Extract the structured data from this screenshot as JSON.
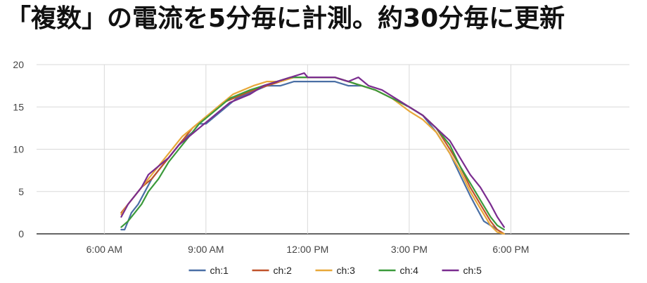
{
  "headline": "「複数」の電流を5分毎に計測。約30分毎に更新",
  "chart_data": {
    "type": "line",
    "title": "",
    "xlabel": "",
    "ylabel": "",
    "ylim": [
      0,
      20
    ],
    "yticks": [
      0,
      5,
      10,
      15,
      20
    ],
    "xlim_hours": [
      4.0,
      21.5
    ],
    "xticks": [
      {
        "hour": 6,
        "label": "6:00 AM"
      },
      {
        "hour": 9,
        "label": "9:00 AM"
      },
      {
        "hour": 12,
        "label": "12:00 PM"
      },
      {
        "hour": 15,
        "label": "3:00 PM"
      },
      {
        "hour": 18,
        "label": "6:00 PM"
      }
    ],
    "grid": true,
    "legend_position": "bottom",
    "series": [
      {
        "name": "ch:1",
        "color": "#4a6fa5",
        "points": [
          [
            6.5,
            0.5
          ],
          [
            6.6,
            0.5
          ],
          [
            6.7,
            1.5
          ],
          [
            6.8,
            2.5
          ],
          [
            7.0,
            3.5
          ],
          [
            7.2,
            5.0
          ],
          [
            7.4,
            6.5
          ],
          [
            7.6,
            7.5
          ],
          [
            7.8,
            8.5
          ],
          [
            8.0,
            9.5
          ],
          [
            8.3,
            11.0
          ],
          [
            8.6,
            12.0
          ],
          [
            8.8,
            13.0
          ],
          [
            9.0,
            13.0
          ],
          [
            9.3,
            14.0
          ],
          [
            9.6,
            15.0
          ],
          [
            9.9,
            16.0
          ],
          [
            10.2,
            16.5
          ],
          [
            10.5,
            17.0
          ],
          [
            10.8,
            17.5
          ],
          [
            11.2,
            17.5
          ],
          [
            11.6,
            18.0
          ],
          [
            12.0,
            18.0
          ],
          [
            12.4,
            18.0
          ],
          [
            12.8,
            18.0
          ],
          [
            13.2,
            17.5
          ],
          [
            13.6,
            17.5
          ],
          [
            14.0,
            17.0
          ],
          [
            14.5,
            16.0
          ],
          [
            15.0,
            15.0
          ],
          [
            15.4,
            14.0
          ],
          [
            15.8,
            12.0
          ],
          [
            16.2,
            9.5
          ],
          [
            16.5,
            7.0
          ],
          [
            16.8,
            4.5
          ],
          [
            17.0,
            3.0
          ],
          [
            17.2,
            1.5
          ],
          [
            17.4,
            1.0
          ],
          [
            17.6,
            0.5
          ],
          [
            17.8,
            0.0
          ]
        ]
      },
      {
        "name": "ch:2",
        "color": "#c0532b",
        "points": [
          [
            6.5,
            2.5
          ],
          [
            6.7,
            3.5
          ],
          [
            6.9,
            4.5
          ],
          [
            7.1,
            5.5
          ],
          [
            7.4,
            6.5
          ],
          [
            7.7,
            8.0
          ],
          [
            8.0,
            9.5
          ],
          [
            8.3,
            11.0
          ],
          [
            8.6,
            12.5
          ],
          [
            8.9,
            13.5
          ],
          [
            9.2,
            14.5
          ],
          [
            9.5,
            15.5
          ],
          [
            9.8,
            16.0
          ],
          [
            10.1,
            16.5
          ],
          [
            10.4,
            17.0
          ],
          [
            10.8,
            17.5
          ],
          [
            11.2,
            18.0
          ],
          [
            11.6,
            18.5
          ],
          [
            12.0,
            18.5
          ],
          [
            12.4,
            18.5
          ],
          [
            12.8,
            18.5
          ],
          [
            13.2,
            18.0
          ],
          [
            13.6,
            17.5
          ],
          [
            14.0,
            17.0
          ],
          [
            14.5,
            16.0
          ],
          [
            15.0,
            15.0
          ],
          [
            15.4,
            14.0
          ],
          [
            15.8,
            12.5
          ],
          [
            16.2,
            10.0
          ],
          [
            16.5,
            8.0
          ],
          [
            16.8,
            5.5
          ],
          [
            17.1,
            3.5
          ],
          [
            17.4,
            1.5
          ],
          [
            17.6,
            0.5
          ],
          [
            17.8,
            0.0
          ]
        ]
      },
      {
        "name": "ch:3",
        "color": "#e8a83a",
        "points": [
          [
            6.5,
            2.3
          ],
          [
            6.7,
            3.5
          ],
          [
            6.9,
            4.5
          ],
          [
            7.1,
            5.5
          ],
          [
            7.4,
            7.0
          ],
          [
            7.7,
            8.5
          ],
          [
            8.0,
            10.0
          ],
          [
            8.3,
            11.5
          ],
          [
            8.6,
            12.5
          ],
          [
            8.9,
            13.5
          ],
          [
            9.2,
            14.5
          ],
          [
            9.5,
            15.5
          ],
          [
            9.8,
            16.5
          ],
          [
            10.1,
            17.0
          ],
          [
            10.4,
            17.5
          ],
          [
            10.8,
            18.0
          ],
          [
            11.2,
            18.0
          ],
          [
            11.6,
            18.5
          ],
          [
            12.0,
            18.5
          ],
          [
            12.4,
            18.5
          ],
          [
            12.8,
            18.5
          ],
          [
            13.2,
            18.0
          ],
          [
            13.6,
            17.5
          ],
          [
            14.0,
            17.0
          ],
          [
            14.5,
            16.0
          ],
          [
            15.0,
            14.5
          ],
          [
            15.4,
            13.5
          ],
          [
            15.8,
            12.0
          ],
          [
            16.2,
            9.5
          ],
          [
            16.5,
            7.5
          ],
          [
            16.8,
            5.0
          ],
          [
            17.1,
            3.0
          ],
          [
            17.4,
            1.0
          ],
          [
            17.6,
            0.2
          ],
          [
            17.8,
            0.0
          ]
        ]
      },
      {
        "name": "ch:4",
        "color": "#3b9a3b",
        "points": [
          [
            6.5,
            0.8
          ],
          [
            6.7,
            1.5
          ],
          [
            6.9,
            2.5
          ],
          [
            7.1,
            3.5
          ],
          [
            7.3,
            5.0
          ],
          [
            7.6,
            6.5
          ],
          [
            7.9,
            8.5
          ],
          [
            8.2,
            10.0
          ],
          [
            8.5,
            11.5
          ],
          [
            8.8,
            13.0
          ],
          [
            9.1,
            14.0
          ],
          [
            9.4,
            15.0
          ],
          [
            9.7,
            16.0
          ],
          [
            10.0,
            16.5
          ],
          [
            10.3,
            17.0
          ],
          [
            10.7,
            17.5
          ],
          [
            11.1,
            18.0
          ],
          [
            11.5,
            18.5
          ],
          [
            12.0,
            18.5
          ],
          [
            12.4,
            18.5
          ],
          [
            12.8,
            18.5
          ],
          [
            13.2,
            18.0
          ],
          [
            13.6,
            17.5
          ],
          [
            14.0,
            17.0
          ],
          [
            14.5,
            16.0
          ],
          [
            15.0,
            15.0
          ],
          [
            15.4,
            14.0
          ],
          [
            15.8,
            12.5
          ],
          [
            16.2,
            10.5
          ],
          [
            16.5,
            8.0
          ],
          [
            16.8,
            6.0
          ],
          [
            17.1,
            4.0
          ],
          [
            17.4,
            2.0
          ],
          [
            17.6,
            1.0
          ],
          [
            17.8,
            0.5
          ]
        ]
      },
      {
        "name": "ch:5",
        "color": "#7a2c8f",
        "points": [
          [
            6.5,
            2.0
          ],
          [
            6.7,
            3.5
          ],
          [
            6.9,
            4.5
          ],
          [
            7.1,
            5.5
          ],
          [
            7.3,
            7.0
          ],
          [
            7.6,
            8.0
          ],
          [
            7.9,
            9.0
          ],
          [
            8.2,
            10.5
          ],
          [
            8.5,
            11.5
          ],
          [
            8.8,
            12.5
          ],
          [
            9.1,
            13.5
          ],
          [
            9.4,
            14.5
          ],
          [
            9.7,
            15.5
          ],
          [
            10.0,
            16.0
          ],
          [
            10.3,
            16.5
          ],
          [
            10.7,
            17.5
          ],
          [
            11.1,
            18.0
          ],
          [
            11.5,
            18.5
          ],
          [
            11.9,
            19.0
          ],
          [
            12.0,
            18.5
          ],
          [
            12.4,
            18.5
          ],
          [
            12.8,
            18.5
          ],
          [
            13.2,
            18.0
          ],
          [
            13.5,
            18.5
          ],
          [
            13.8,
            17.5
          ],
          [
            14.2,
            17.0
          ],
          [
            14.6,
            16.0
          ],
          [
            15.0,
            15.0
          ],
          [
            15.4,
            14.0
          ],
          [
            15.8,
            12.5
          ],
          [
            16.2,
            11.0
          ],
          [
            16.5,
            9.0
          ],
          [
            16.8,
            7.0
          ],
          [
            17.1,
            5.5
          ],
          [
            17.4,
            3.5
          ],
          [
            17.6,
            2.0
          ],
          [
            17.8,
            0.8
          ]
        ]
      }
    ]
  }
}
